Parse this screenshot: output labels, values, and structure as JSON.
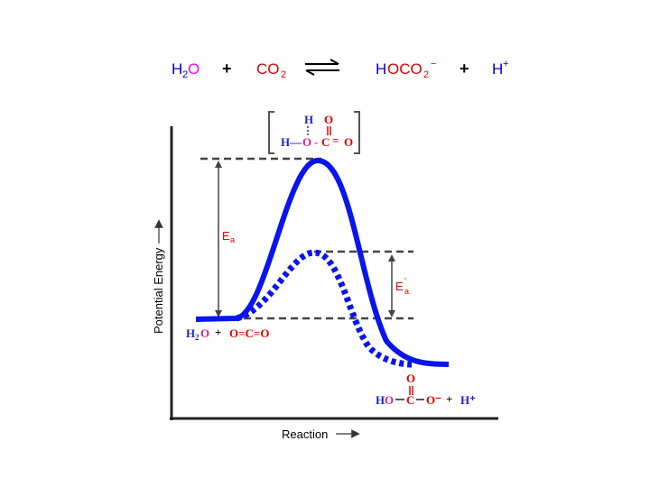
{
  "equation": {
    "h2o": "H₂O",
    "plus1": "+",
    "co2": "CO₂",
    "hoco2": "HOCO₂⁻",
    "plus2": "+",
    "h": "H⁺"
  },
  "transition_state": {
    "h_top": "H",
    "h_o": "H—",
    "o_bonded": "O",
    "dash_c": "- C",
    "double_eq": "=",
    "o_right": "O",
    "o_top": "O",
    "dash": "- -"
  },
  "reactants_label": {
    "h2o": "H₂O",
    "plus": "+",
    "o_c_o": "O=C=O"
  },
  "products_label": {
    "o_top": "O",
    "ho": "HO",
    "c": "C",
    "o_minus": "O⁻",
    "plus": "+",
    "h_plus": "H⁺"
  },
  "labels": {
    "ea": "Eₐ",
    "ea_prime": "E'ₐ",
    "y_axis": "Potential Energy",
    "x_axis": "Reaction"
  },
  "colors": {
    "curve": "#0a14ee",
    "h2o_blue": "#0000cc",
    "magenta": "#ff00ff",
    "red": "#e00000",
    "h_blue": "#2222cc"
  }
}
